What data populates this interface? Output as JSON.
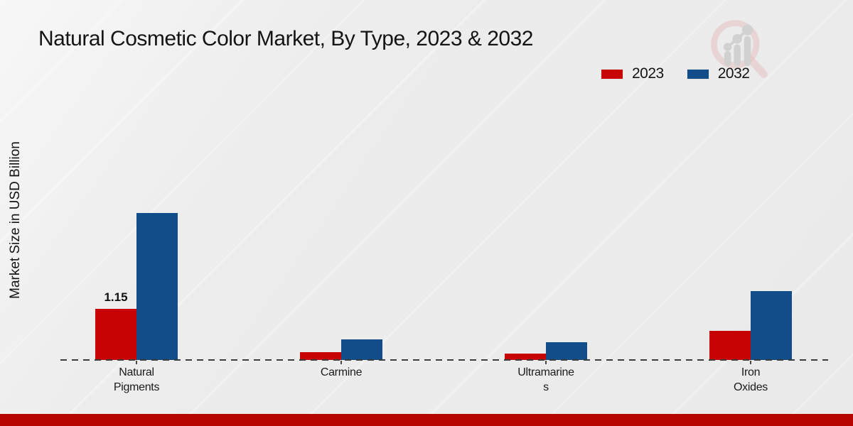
{
  "page": {
    "title": "Natural Cosmetic Color Market, By Type, 2023 & 2032",
    "y_axis_label": "Market Size in USD Billion",
    "background_color": "#ebebeb",
    "footer_color": "#b90404"
  },
  "legend": {
    "position": "top-right",
    "items": [
      {
        "label": "2023",
        "color": "#c80303"
      },
      {
        "label": "2032",
        "color": "#114d88"
      }
    ]
  },
  "watermark": {
    "name": "magnifier-bar-chart-logo",
    "ring_color": "#e3bcbc",
    "bars_color": "#cfcfcf"
  },
  "chart_data": {
    "type": "bar",
    "title": "Natural Cosmetic Color Market, By Type, 2023 & 2032",
    "xlabel": "",
    "ylabel": "Market Size in USD Billion",
    "categories": [
      "Natural Pigments",
      "Carmine",
      "Ultramarines",
      "Iron Oxides"
    ],
    "category_label_lines": [
      [
        "Natural",
        "Pigments"
      ],
      [
        "Carmine"
      ],
      [
        "Ultramarine",
        "s"
      ],
      [
        "Iron",
        "Oxides"
      ]
    ],
    "series": [
      {
        "name": "2023",
        "color": "#c80303",
        "values": [
          1.15,
          0.17,
          0.15,
          0.66
        ],
        "bar_labels": [
          "1.15",
          "",
          "",
          ""
        ]
      },
      {
        "name": "2032",
        "color": "#114d88",
        "values": [
          3.3,
          0.46,
          0.4,
          1.55
        ],
        "bar_labels": [
          "",
          "",
          "",
          ""
        ]
      }
    ],
    "ylim": [
      0,
      3.6
    ],
    "grid": false,
    "y_axis_ticks_visible": false,
    "legend_position": "top-right",
    "baseline_style": "dashed"
  }
}
